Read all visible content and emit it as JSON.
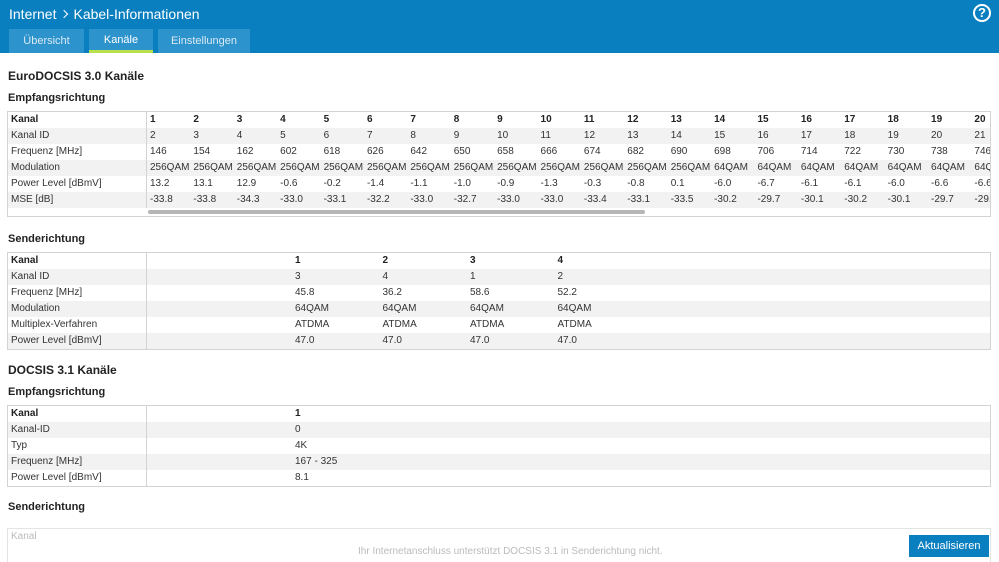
{
  "header": {
    "breadcrumb_root": "Internet",
    "breadcrumb_current": "Kabel-Informationen",
    "help_label": "?",
    "tabs": [
      {
        "label": "Übersicht"
      },
      {
        "label": "Kanäle"
      },
      {
        "label": "Einstellungen"
      }
    ]
  },
  "docsis30": {
    "title": "EuroDOCSIS 3.0 Kanäle",
    "downstream": {
      "title": "Empfangsrichtung",
      "rows": [
        {
          "label": "Kanal",
          "values": [
            "1",
            "2",
            "3",
            "4",
            "5",
            "6",
            "7",
            "8",
            "9",
            "10",
            "11",
            "12",
            "13",
            "14",
            "15",
            "16",
            "17",
            "18",
            "19",
            "20"
          ]
        },
        {
          "label": "Kanal ID",
          "values": [
            "2",
            "3",
            "4",
            "5",
            "6",
            "7",
            "8",
            "9",
            "10",
            "11",
            "12",
            "13",
            "14",
            "15",
            "16",
            "17",
            "18",
            "19",
            "20",
            "21"
          ]
        },
        {
          "label": "Frequenz [MHz]",
          "values": [
            "146",
            "154",
            "162",
            "602",
            "618",
            "626",
            "642",
            "650",
            "658",
            "666",
            "674",
            "682",
            "690",
            "698",
            "706",
            "714",
            "722",
            "730",
            "738",
            "746"
          ]
        },
        {
          "label": "Modulation",
          "values": [
            "256QAM",
            "256QAM",
            "256QAM",
            "256QAM",
            "256QAM",
            "256QAM",
            "256QAM",
            "256QAM",
            "256QAM",
            "256QAM",
            "256QAM",
            "256QAM",
            "256QAM",
            "64QAM",
            "64QAM",
            "64QAM",
            "64QAM",
            "64QAM",
            "64QAM",
            "64Q"
          ]
        },
        {
          "label": "Power Level [dBmV]",
          "values": [
            "13.2",
            "13.1",
            "12.9",
            "-0.6",
            "-0.2",
            "-1.4",
            "-1.1",
            "-1.0",
            "-0.9",
            "-1.3",
            "-0.3",
            "-0.8",
            "0.1",
            "-6.0",
            "-6.7",
            "-6.1",
            "-6.1",
            "-6.0",
            "-6.6",
            "-6.6"
          ]
        },
        {
          "label": "MSE [dB]",
          "values": [
            "-33.8",
            "-33.8",
            "-34.3",
            "-33.0",
            "-33.1",
            "-32.2",
            "-33.0",
            "-32.7",
            "-33.0",
            "-33.0",
            "-33.4",
            "-33.1",
            "-33.5",
            "-30.2",
            "-29.7",
            "-30.1",
            "-30.2",
            "-30.1",
            "-29.7",
            "-29."
          ]
        }
      ]
    },
    "upstream": {
      "title": "Senderichtung",
      "rows": [
        {
          "label": "Kanal",
          "values": [
            "1",
            "2",
            "3",
            "4"
          ]
        },
        {
          "label": "Kanal ID",
          "values": [
            "3",
            "4",
            "1",
            "2"
          ]
        },
        {
          "label": "Frequenz [MHz]",
          "values": [
            "45.8",
            "36.2",
            "58.6",
            "52.2"
          ]
        },
        {
          "label": "Modulation",
          "values": [
            "64QAM",
            "64QAM",
            "64QAM",
            "64QAM"
          ]
        },
        {
          "label": "Multiplex-Verfahren",
          "values": [
            "ATDMA",
            "ATDMA",
            "ATDMA",
            "ATDMA"
          ]
        },
        {
          "label": "Power Level [dBmV]",
          "values": [
            "47.0",
            "47.0",
            "47.0",
            "47.0"
          ]
        }
      ]
    }
  },
  "docsis31": {
    "title": "DOCSIS 3.1 Kanäle",
    "downstream": {
      "title": "Empfangsrichtung",
      "rows": [
        {
          "label": "Kanal",
          "values": [
            "1"
          ]
        },
        {
          "label": "Kanal-ID",
          "values": [
            "0"
          ]
        },
        {
          "label": "Typ",
          "values": [
            "4K"
          ]
        },
        {
          "label": "Frequenz [MHz]",
          "values": [
            "167 - 325"
          ]
        },
        {
          "label": "Power Level [dBmV]",
          "values": [
            "8.1"
          ]
        }
      ]
    },
    "upstream": {
      "title": "Senderichtung",
      "header_label": "Kanal",
      "note": "Ihr Internetanschluss unterstützt DOCSIS 3.1 in Senderichtung nicht."
    }
  },
  "refresh_label": "Aktualisieren"
}
